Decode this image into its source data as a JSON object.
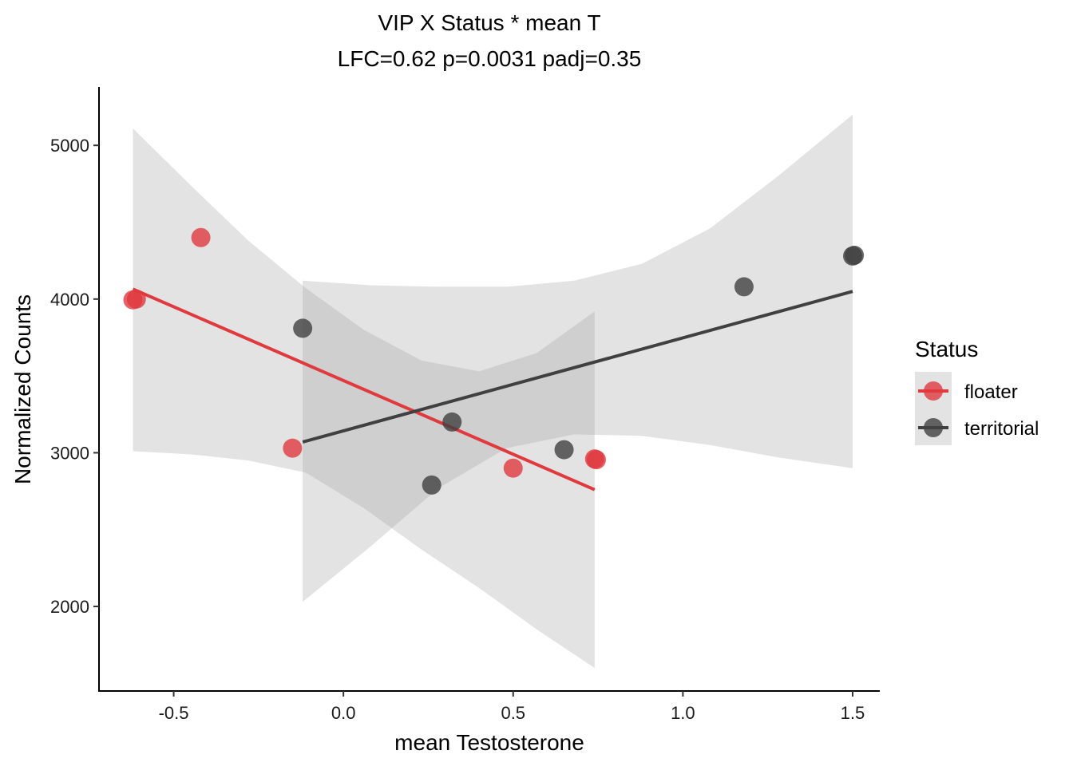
{
  "chart_data": {
    "type": "scatter",
    "title": "VIP X Status * mean T",
    "subtitle": "LFC=0.62 p=0.0031 padj=0.35",
    "xlabel": "mean Testosterone",
    "ylabel": "Normalized Counts",
    "xlim": [
      -0.72,
      1.58
    ],
    "ylim": [
      1450,
      5380
    ],
    "x_ticks": [
      -0.5,
      0.0,
      0.5,
      1.0,
      1.5
    ],
    "x_tick_labels": [
      "-0.5",
      "0.0",
      "0.5",
      "1.0",
      "1.5"
    ],
    "y_ticks": [
      2000,
      3000,
      4000,
      5000
    ],
    "y_tick_labels": [
      "2000",
      "3000",
      "4000",
      "5000"
    ],
    "grid": false,
    "legend": {
      "title": "Status",
      "position": "right"
    },
    "series": [
      {
        "name": "floater",
        "color": "#e0393e",
        "points": [
          {
            "x": -0.61,
            "y": 4000
          },
          {
            "x": -0.62,
            "y": 3995
          },
          {
            "x": -0.42,
            "y": 4400
          },
          {
            "x": -0.15,
            "y": 3030
          },
          {
            "x": 0.5,
            "y": 2900
          },
          {
            "x": 0.74,
            "y": 2960
          },
          {
            "x": 0.745,
            "y": 2955
          }
        ],
        "fit": {
          "x0": -0.62,
          "y0": 4065,
          "x1": 0.74,
          "y1": 2760
        },
        "band": {
          "x": [
            -0.62,
            -0.45,
            -0.28,
            -0.11,
            0.06,
            0.23,
            0.4,
            0.57,
            0.74
          ],
          "upper": [
            5110,
            4740,
            4380,
            4070,
            3800,
            3600,
            3530,
            3650,
            3920
          ],
          "lower": [
            3010,
            2990,
            2950,
            2870,
            2640,
            2370,
            2120,
            1850,
            1600
          ]
        }
      },
      {
        "name": "territorial",
        "color": "#404040",
        "points": [
          {
            "x": -0.12,
            "y": 3810
          },
          {
            "x": 0.26,
            "y": 2790
          },
          {
            "x": 0.32,
            "y": 3200
          },
          {
            "x": 0.65,
            "y": 3020
          },
          {
            "x": 1.18,
            "y": 4080
          },
          {
            "x": 1.5,
            "y": 4280
          },
          {
            "x": 1.505,
            "y": 4285
          }
        ],
        "fit": {
          "x0": -0.12,
          "y0": 3070,
          "x1": 1.5,
          "y1": 4050
        },
        "band": {
          "x": [
            -0.12,
            0.08,
            0.28,
            0.48,
            0.68,
            0.88,
            1.08,
            1.28,
            1.5
          ],
          "upper": [
            4120,
            4090,
            4080,
            4080,
            4120,
            4230,
            4460,
            4800,
            5200
          ],
          "lower": [
            2030,
            2390,
            2770,
            3030,
            3120,
            3110,
            3050,
            2970,
            2900
          ]
        }
      }
    ]
  }
}
